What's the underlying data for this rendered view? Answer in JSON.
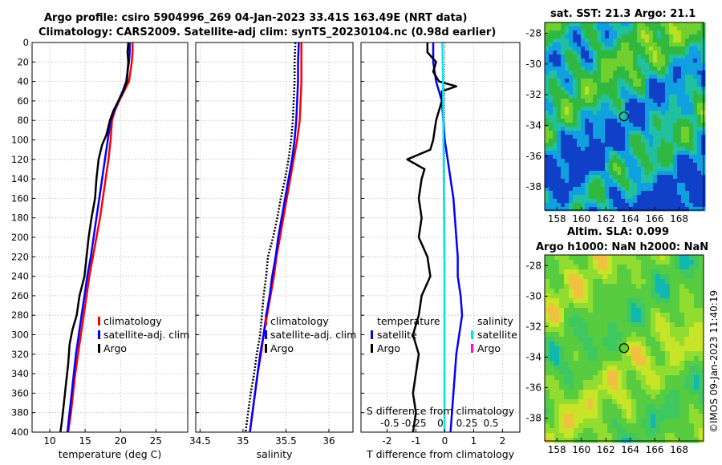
{
  "header": {
    "line1": "Argo profile: csiro 5904996_269 04-Jan-2023 33.41S 163.49E (NRT data)",
    "line2": "Climatology: CARS2009. Satellite-adj clim: synTS_20230104.nc (0.98d earlier)"
  },
  "side_label": "©IMOS 09-Jan-2023 11:40:19",
  "colors": {
    "clim": "#ff0000",
    "sat": "#0000ff",
    "argo": "#000000",
    "sat_s": "#00e5ee",
    "clim_s": "#ff00ff"
  },
  "chart_data": [
    {
      "type": "line",
      "id": "temperature",
      "xlabel": "temperature (deg C)",
      "xlim": [
        7.5,
        29.5
      ],
      "xticks": [
        10,
        15,
        20,
        25
      ],
      "ylim": [
        0,
        400
      ],
      "yticks": [
        0,
        20,
        40,
        60,
        80,
        100,
        120,
        140,
        160,
        180,
        200,
        220,
        240,
        260,
        280,
        300,
        320,
        340,
        360,
        380,
        400
      ],
      "legend": [
        "climatology",
        "satellite-adj. clim",
        "Argo"
      ],
      "series": [
        {
          "name": "climatology",
          "color": "#ff0000",
          "width": 2.5,
          "points": [
            [
              21.7,
              0
            ],
            [
              21.7,
              10
            ],
            [
              21.6,
              20
            ],
            [
              21.4,
              30
            ],
            [
              21.2,
              40
            ],
            [
              20.5,
              50
            ],
            [
              19.8,
              60
            ],
            [
              19.2,
              70
            ],
            [
              18.8,
              80
            ],
            [
              18.6,
              100
            ],
            [
              18.3,
              120
            ],
            [
              17.9,
              140
            ],
            [
              17.5,
              160
            ],
            [
              17.1,
              180
            ],
            [
              16.6,
              200
            ],
            [
              16.1,
              220
            ],
            [
              15.6,
              240
            ],
            [
              15.2,
              260
            ],
            [
              14.8,
              280
            ],
            [
              14.4,
              300
            ],
            [
              14.0,
              320
            ],
            [
              13.6,
              340
            ],
            [
              13.3,
              360
            ],
            [
              13.0,
              380
            ],
            [
              12.6,
              400
            ]
          ]
        },
        {
          "name": "satellite-adj. clim",
          "color": "#0000ff",
          "width": 2.5,
          "points": [
            [
              21.3,
              0
            ],
            [
              21.3,
              10
            ],
            [
              21.2,
              20
            ],
            [
              21.0,
              30
            ],
            [
              20.8,
              40
            ],
            [
              20.3,
              50
            ],
            [
              19.7,
              60
            ],
            [
              19.1,
              70
            ],
            [
              18.6,
              80
            ],
            [
              18.2,
              100
            ],
            [
              17.8,
              120
            ],
            [
              17.4,
              140
            ],
            [
              17.0,
              160
            ],
            [
              16.6,
              180
            ],
            [
              16.2,
              200
            ],
            [
              15.8,
              220
            ],
            [
              15.3,
              240
            ],
            [
              14.9,
              260
            ],
            [
              14.5,
              280
            ],
            [
              14.1,
              300
            ],
            [
              13.7,
              320
            ],
            [
              13.4,
              340
            ],
            [
              13.1,
              360
            ],
            [
              12.8,
              380
            ],
            [
              12.5,
              400
            ]
          ]
        },
        {
          "name": "Argo",
          "color": "#000000",
          "width": 2.5,
          "points": [
            [
              21.1,
              0
            ],
            [
              21.0,
              10
            ],
            [
              21.1,
              20
            ],
            [
              21.0,
              30
            ],
            [
              20.9,
              40
            ],
            [
              20.4,
              50
            ],
            [
              19.7,
              60
            ],
            [
              19.0,
              70
            ],
            [
              18.5,
              80
            ],
            [
              18.0,
              95
            ],
            [
              17.4,
              105
            ],
            [
              16.9,
              120
            ],
            [
              16.6,
              140
            ],
            [
              16.4,
              160
            ],
            [
              15.9,
              180
            ],
            [
              15.5,
              200
            ],
            [
              15.2,
              220
            ],
            [
              14.9,
              240
            ],
            [
              14.2,
              260
            ],
            [
              13.8,
              280
            ],
            [
              13.2,
              295
            ],
            [
              12.8,
              310
            ],
            [
              12.6,
              330
            ],
            [
              12.3,
              350
            ],
            [
              12.0,
              370
            ],
            [
              11.7,
              390
            ],
            [
              11.5,
              400
            ]
          ]
        }
      ]
    },
    {
      "type": "line",
      "id": "salinity",
      "xlabel": "salinity",
      "xlim": [
        34.45,
        36.28
      ],
      "xticks": [
        34.5,
        35,
        35.5,
        36
      ],
      "ylim": [
        0,
        400
      ],
      "legend": [
        "climatology",
        "satellite-adj. clim",
        "Argo"
      ],
      "series": [
        {
          "name": "climatology",
          "color": "#ff0000",
          "width": 2.5,
          "points": [
            [
              35.68,
              0
            ],
            [
              35.68,
              20
            ],
            [
              35.68,
              40
            ],
            [
              35.67,
              60
            ],
            [
              35.66,
              80
            ],
            [
              35.63,
              100
            ],
            [
              35.59,
              120
            ],
            [
              35.55,
              140
            ],
            [
              35.51,
              160
            ],
            [
              35.47,
              180
            ],
            [
              35.43,
              200
            ],
            [
              35.39,
              220
            ],
            [
              35.36,
              240
            ],
            [
              35.32,
              260
            ],
            [
              35.28,
              280
            ],
            [
              35.24,
              300
            ],
            [
              35.21,
              320
            ],
            [
              35.17,
              340
            ],
            [
              35.14,
              360
            ],
            [
              35.11,
              380
            ],
            [
              35.08,
              400
            ]
          ]
        },
        {
          "name": "satellite-adj. clim",
          "color": "#0000ff",
          "width": 2.5,
          "points": [
            [
              35.65,
              0
            ],
            [
              35.64,
              20
            ],
            [
              35.64,
              40
            ],
            [
              35.63,
              60
            ],
            [
              35.62,
              80
            ],
            [
              35.6,
              100
            ],
            [
              35.57,
              120
            ],
            [
              35.53,
              140
            ],
            [
              35.49,
              160
            ],
            [
              35.45,
              180
            ],
            [
              35.41,
              200
            ],
            [
              35.38,
              220
            ],
            [
              35.34,
              240
            ],
            [
              35.31,
              260
            ],
            [
              35.27,
              280
            ],
            [
              35.24,
              300
            ],
            [
              35.2,
              320
            ],
            [
              35.17,
              340
            ],
            [
              35.14,
              360
            ],
            [
              35.11,
              380
            ],
            [
              35.08,
              400
            ]
          ]
        },
        {
          "name": "Argo",
          "color": "#000000",
          "width": 2.5,
          "dash": true,
          "points": [
            [
              35.61,
              0
            ],
            [
              35.6,
              20
            ],
            [
              35.6,
              40
            ],
            [
              35.59,
              60
            ],
            [
              35.58,
              80
            ],
            [
              35.56,
              100
            ],
            [
              35.53,
              120
            ],
            [
              35.49,
              140
            ],
            [
              35.44,
              160
            ],
            [
              35.4,
              180
            ],
            [
              35.35,
              200
            ],
            [
              35.29,
              220
            ],
            [
              35.27,
              240
            ],
            [
              35.24,
              260
            ],
            [
              35.22,
              280
            ],
            [
              35.2,
              300
            ],
            [
              35.16,
              320
            ],
            [
              35.13,
              340
            ],
            [
              35.09,
              360
            ],
            [
              35.06,
              380
            ],
            [
              35.03,
              400
            ]
          ]
        }
      ]
    },
    {
      "type": "line",
      "id": "differences",
      "xlabel": "T difference from climatology",
      "xlim": [
        -2.9,
        2.6
      ],
      "xticks": [
        -2,
        -1,
        0,
        1,
        2
      ],
      "top_xlabel": "S difference from climatology",
      "top_xticks": [
        "-0.5",
        "-0.25",
        "0",
        "0.25",
        "0.5"
      ],
      "ylim": [
        0,
        400
      ],
      "legend_left": [
        "temperature",
        "satellite",
        "Argo"
      ],
      "legend_right": [
        "salinity",
        "satellite",
        "Argo"
      ],
      "series": [
        {
          "name": "T satellite",
          "color": "#0000ff",
          "width": 2.5,
          "points": [
            [
              -0.4,
              0
            ],
            [
              -0.4,
              10
            ],
            [
              -0.4,
              20
            ],
            [
              -0.3,
              40
            ],
            [
              -0.1,
              60
            ],
            [
              -0.05,
              80
            ],
            [
              0.0,
              100
            ],
            [
              0.1,
              120
            ],
            [
              0.2,
              140
            ],
            [
              0.3,
              160
            ],
            [
              0.35,
              180
            ],
            [
              0.4,
              200
            ],
            [
              0.45,
              220
            ],
            [
              0.45,
              240
            ],
            [
              0.55,
              260
            ],
            [
              0.6,
              280
            ],
            [
              0.5,
              300
            ],
            [
              0.4,
              320
            ],
            [
              0.35,
              340
            ],
            [
              0.3,
              360
            ],
            [
              0.25,
              380
            ],
            [
              0.2,
              400
            ]
          ]
        },
        {
          "name": "T Argo",
          "color": "#000000",
          "width": 2.5,
          "points": [
            [
              -0.6,
              0
            ],
            [
              -0.6,
              10
            ],
            [
              -0.3,
              20
            ],
            [
              -0.4,
              30
            ],
            [
              -0.2,
              40
            ],
            [
              0.4,
              45
            ],
            [
              -0.1,
              50
            ],
            [
              -0.1,
              60
            ],
            [
              -0.3,
              80
            ],
            [
              -0.4,
              100
            ],
            [
              -0.5,
              110
            ],
            [
              -1.3,
              120
            ],
            [
              -0.7,
              130
            ],
            [
              -0.8,
              140
            ],
            [
              -0.9,
              160
            ],
            [
              -0.8,
              180
            ],
            [
              -0.9,
              200
            ],
            [
              -0.6,
              220
            ],
            [
              -0.5,
              240
            ],
            [
              -0.8,
              260
            ],
            [
              -0.9,
              280
            ],
            [
              -1.1,
              300
            ],
            [
              -0.9,
              320
            ],
            [
              -1.0,
              340
            ],
            [
              -1.1,
              360
            ],
            [
              -1.0,
              380
            ],
            [
              -1.1,
              400
            ]
          ]
        },
        {
          "name": "S satellite",
          "color": "#00e5ee",
          "width": 2.5,
          "points": [
            [
              -0.08,
              0
            ],
            [
              -0.06,
              40
            ],
            [
              -0.05,
              80
            ],
            [
              -0.04,
              120
            ],
            [
              -0.03,
              160
            ],
            [
              -0.02,
              200
            ],
            [
              -0.01,
              240
            ],
            [
              -0.01,
              280
            ],
            [
              -0.01,
              320
            ],
            [
              -0.01,
              360
            ],
            [
              -0.01,
              400
            ]
          ]
        }
      ]
    },
    {
      "type": "heatmap",
      "id": "sst_map",
      "title": "sat. SST: 21.3  Argo: 21.1",
      "xlim": [
        157,
        170
      ],
      "ylim": [
        -39.5,
        -27.3
      ],
      "xticks": [
        158,
        160,
        162,
        164,
        166,
        168
      ],
      "yticks": [
        -28,
        -30,
        -32,
        -34,
        -36,
        -38
      ],
      "marker": [
        163.49,
        -33.41
      ]
    },
    {
      "type": "heatmap",
      "id": "sla_map",
      "title_line1": "Altim. SLA: 0.099",
      "title_line2": "Argo h1000: NaN  h2000: NaN",
      "xlim": [
        157,
        170
      ],
      "ylim": [
        -39.5,
        -27.3
      ],
      "xticks": [
        158,
        160,
        162,
        164,
        166,
        168
      ],
      "yticks": [
        -28,
        -30,
        -32,
        -34,
        -36,
        -38
      ],
      "marker": [
        163.49,
        -33.41
      ]
    }
  ]
}
